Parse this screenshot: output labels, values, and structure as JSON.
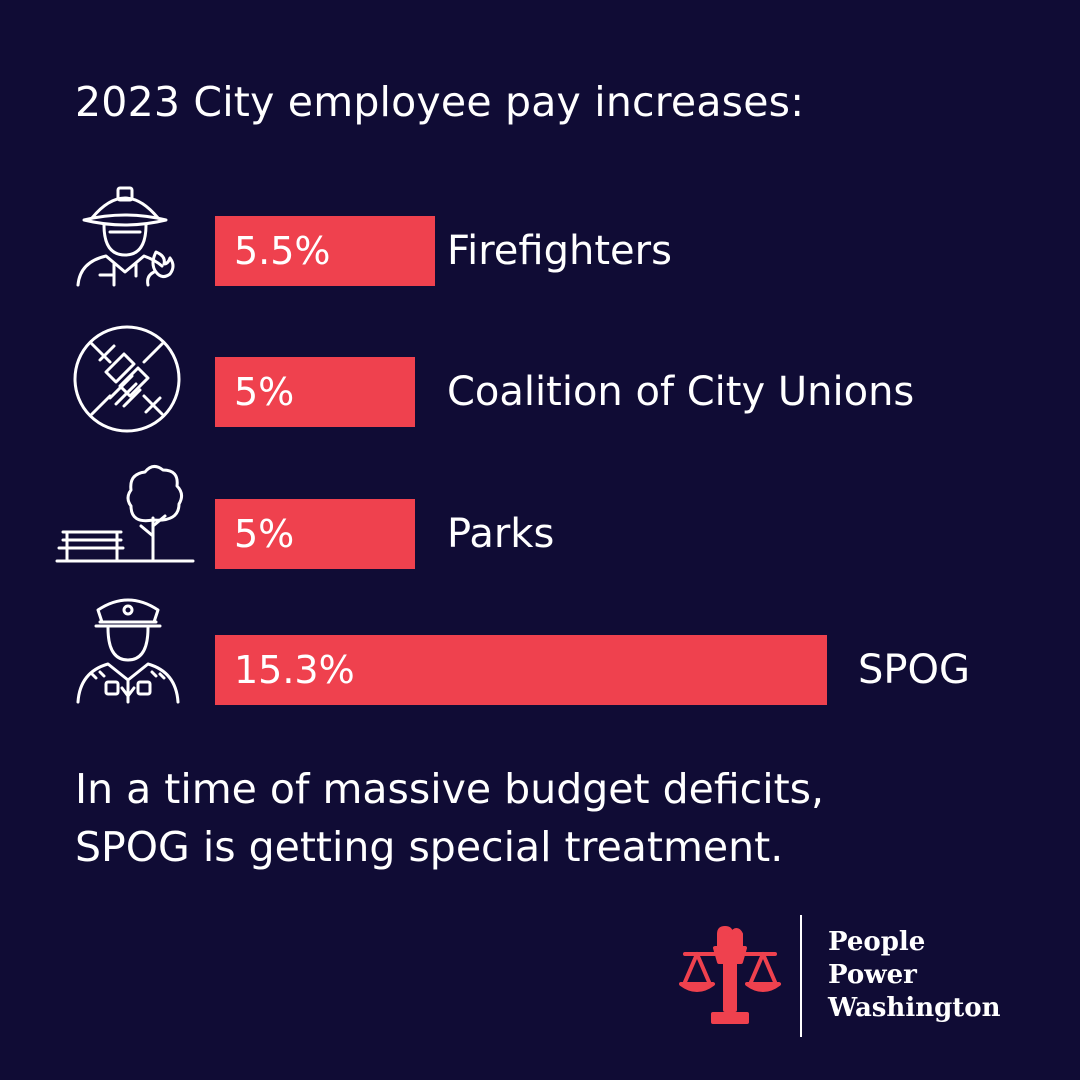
{
  "title": "2023 City employee pay increases:",
  "chart_data": {
    "type": "bar",
    "orientation": "horizontal",
    "categories": [
      "Firefighters",
      "Coalition of City Unions",
      "Parks",
      "SPOG"
    ],
    "values": [
      5.5,
      5,
      5,
      15.3
    ],
    "value_labels": [
      "5.5%",
      "5%",
      "5%",
      "15.3%"
    ],
    "units": "%",
    "bar_color": "#ef414e",
    "icons": [
      "firefighter-icon",
      "joined-hands-icon",
      "park-bench-tree-icon",
      "police-officer-icon"
    ]
  },
  "footnote": {
    "line1": "In a time of massive budget deficits,",
    "line2": "SPOG is getting special treatment."
  },
  "logo": {
    "line1": "People",
    "line2": "Power",
    "line3": "Washington",
    "icon": "scales-of-justice-fist-icon",
    "color": "#ef414e"
  },
  "colors": {
    "background": "#100c35",
    "text": "#ffffff",
    "accent": "#ef414e"
  }
}
